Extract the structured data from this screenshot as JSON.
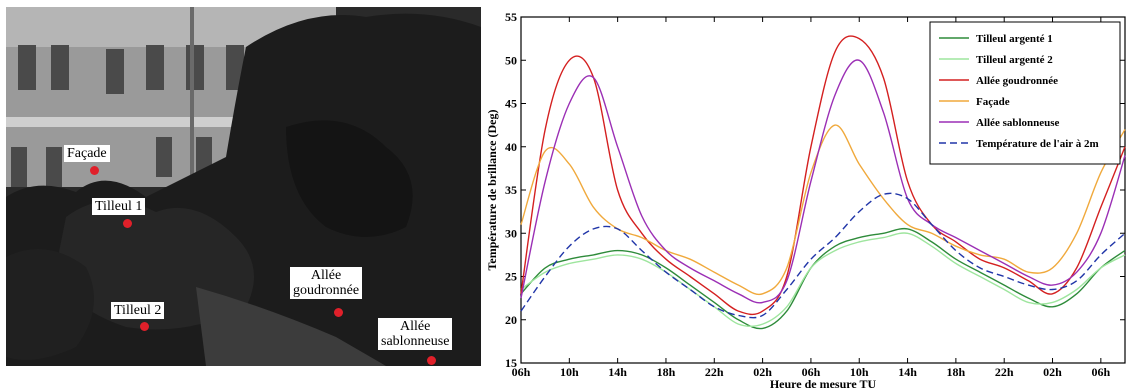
{
  "photo": {
    "markers": [
      {
        "id": "facade",
        "label": "Façade"
      },
      {
        "id": "tilleul1",
        "label": "Tilleul 1"
      },
      {
        "id": "tilleul2",
        "label": "Tilleul 2"
      },
      {
        "id": "allee-goudronnee",
        "label": "Allée\ngoudronnée"
      },
      {
        "id": "allee-sablonneuse",
        "label": "Allée\nsablonneuse"
      }
    ],
    "marker_color": "#e0202a"
  },
  "chart_data": {
    "type": "line",
    "xlabel": "Heure de mesure TU",
    "ylabel": "Température de brillance (Deg)",
    "ylim": [
      15,
      55
    ],
    "yticks": [
      15,
      20,
      25,
      30,
      35,
      40,
      45,
      50,
      55
    ],
    "xlim": [
      0,
      50
    ],
    "xticks": [
      0,
      4,
      8,
      12,
      16,
      20,
      24,
      28,
      32,
      36,
      40,
      44,
      48
    ],
    "xtick_labels": [
      "06h",
      "10h",
      "14h",
      "18h",
      "22h",
      "02h",
      "06h",
      "10h",
      "14h",
      "18h",
      "22h",
      "02h",
      "06h"
    ],
    "legend_position": "top-right",
    "grid": false,
    "x": [
      0,
      2,
      4,
      6,
      8,
      10,
      12,
      14,
      16,
      18,
      20,
      22,
      24,
      26,
      28,
      30,
      32,
      34,
      36,
      38,
      40,
      42,
      44,
      46,
      48,
      50
    ],
    "series": [
      {
        "name": "Tilleul argenté 1",
        "color": "#2e8b3a",
        "dash": "",
        "values": [
          23,
          26,
          27,
          27.5,
          28,
          27.5,
          26,
          24,
          22,
          20,
          19,
          21,
          26,
          28.5,
          29.5,
          30,
          30.5,
          29,
          27,
          25.5,
          24,
          22.5,
          21.5,
          23,
          26,
          28
        ]
      },
      {
        "name": "Tilleul argenté 2",
        "color": "#9ee59e",
        "dash": "",
        "values": [
          23.5,
          25.5,
          26.5,
          27,
          27.5,
          27,
          25.5,
          23.5,
          21.5,
          19.5,
          19.5,
          21.5,
          26,
          28,
          29,
          29.5,
          30,
          28.5,
          26.5,
          25,
          23.5,
          22,
          22,
          23.5,
          26,
          27.5
        ]
      },
      {
        "name": "Allée goudronnée",
        "color": "#d42020",
        "dash": "",
        "values": [
          23,
          42,
          50,
          48,
          35,
          30,
          27,
          25,
          23,
          21,
          21,
          25,
          40,
          51,
          52.5,
          48,
          36,
          31,
          29,
          27,
          26,
          24.5,
          23,
          26,
          33,
          40
        ]
      },
      {
        "name": "Façade",
        "color": "#f0a93c",
        "dash": "",
        "values": [
          31,
          39.5,
          38,
          33,
          30.5,
          29.5,
          28,
          27,
          25.5,
          24,
          23,
          26,
          37,
          42.5,
          38,
          34,
          31,
          30,
          28.5,
          27.5,
          27,
          25.5,
          26,
          30,
          37,
          42
        ]
      },
      {
        "name": "Allée sablonneuse",
        "color": "#9b2fb5",
        "dash": "",
        "values": [
          22.5,
          36,
          45,
          48,
          40,
          32,
          28,
          26,
          24.5,
          23,
          22,
          24.5,
          36,
          46,
          50,
          44,
          34,
          31,
          29.5,
          28,
          26.5,
          25,
          24,
          25.5,
          30,
          39
        ]
      },
      {
        "name": "Température de l'air à 2m",
        "color": "#2035a8",
        "dash": "7,4",
        "values": [
          21,
          25,
          28.5,
          30.5,
          30.5,
          28,
          25.5,
          23.5,
          21.5,
          20.5,
          20.5,
          23.5,
          27,
          29.5,
          32.5,
          34.5,
          34,
          31,
          28,
          26,
          25,
          24,
          23.5,
          24.5,
          27.5,
          30
        ]
      }
    ]
  }
}
